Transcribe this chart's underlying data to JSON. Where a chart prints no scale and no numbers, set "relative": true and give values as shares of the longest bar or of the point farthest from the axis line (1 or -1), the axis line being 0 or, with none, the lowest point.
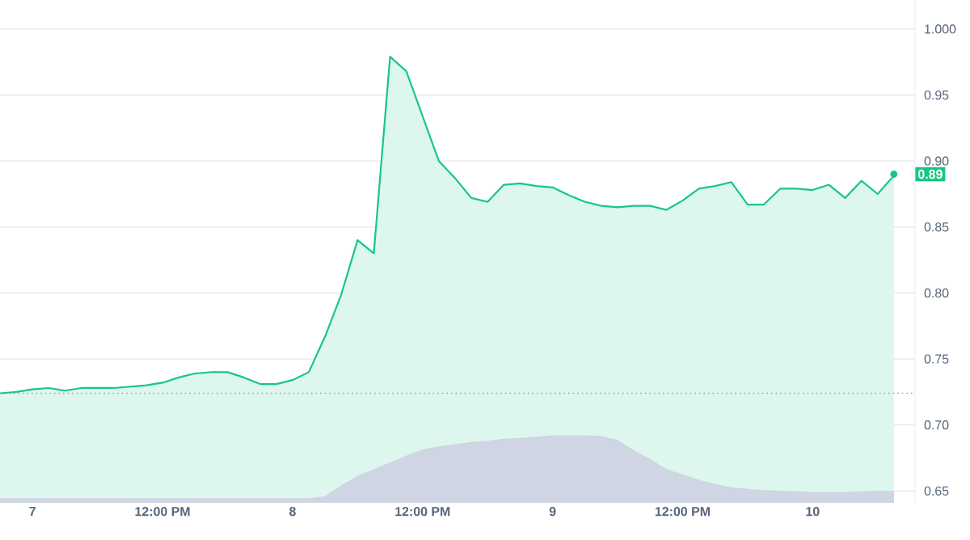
{
  "chart_data": [
    {
      "type": "area",
      "categories": [
        null,
        null,
        "7",
        null,
        null,
        null,
        null,
        null,
        null,
        null,
        "12:00 PM",
        null,
        null,
        null,
        null,
        null,
        null,
        null,
        "8",
        null,
        null,
        null,
        null,
        null,
        null,
        null,
        "12:00 PM",
        null,
        null,
        null,
        null,
        null,
        null,
        null,
        "9",
        null,
        null,
        null,
        null,
        null,
        null,
        null,
        "12:00 PM",
        null,
        null,
        null,
        null,
        null,
        null,
        null,
        "10",
        null,
        null,
        null,
        null,
        null
      ],
      "series": [
        {
          "color": "#16c784",
          "values": [
            0.724,
            0.725,
            0.727,
            0.728,
            0.726,
            0.728,
            0.728,
            0.728,
            0.729,
            0.73,
            0.732,
            0.736,
            0.739,
            0.74,
            0.74,
            0.736,
            0.731,
            0.731,
            0.734,
            0.74,
            0.767,
            0.799,
            0.84,
            0.83,
            0.979,
            0.968,
            0.934,
            0.9,
            0.887,
            0.872,
            0.869,
            0.882,
            0.883,
            0.881,
            0.88,
            0.874,
            0.869,
            0.866,
            0.865,
            0.866,
            0.866,
            0.863,
            0.87,
            0.879,
            0.881,
            0.884,
            0.867,
            0.867,
            0.879,
            0.879,
            0.878,
            0.882,
            0.872,
            0.885,
            0.875,
            0.889
          ]
        }
      ],
      "ylim": [
        0.641,
        1.022
      ],
      "yticks": [
        {
          "value": 0.65,
          "label": "0.65"
        },
        {
          "value": 0.7,
          "label": "0.70"
        },
        {
          "value": 0.75,
          "label": "0.75"
        },
        {
          "value": 0.8,
          "label": "0.80"
        },
        {
          "value": 0.85,
          "label": "0.85"
        },
        {
          "value": 0.9,
          "label": "0.90"
        },
        {
          "value": 0.95,
          "label": "0.95"
        },
        {
          "value": 1.0,
          "label": "1.000"
        }
      ],
      "grid": "y",
      "ref_lines": [
        {
          "axis": "y",
          "value": 0.724,
          "color": "#9aa0ab",
          "line_style": "dotted"
        }
      ],
      "annotations": [
        {
          "text": "0.89",
          "y": 0.89
        }
      ]
    },
    {
      "type": "area",
      "relative": true,
      "categories": [
        null,
        null,
        null,
        null,
        null,
        null,
        null,
        null,
        null,
        null,
        null,
        null,
        null,
        null,
        null,
        null,
        null,
        null,
        null,
        null,
        null,
        null,
        null,
        null,
        null,
        null,
        null,
        null,
        null,
        null,
        null,
        null,
        null,
        null,
        null,
        null,
        null,
        null,
        null,
        null,
        null,
        null,
        null,
        null,
        null,
        null,
        null,
        null,
        null,
        null,
        null,
        null,
        null,
        null,
        null,
        null
      ],
      "series": [
        {
          "color": "#cfd5e3",
          "values": [
            0.07,
            0.07,
            0.07,
            0.07,
            0.07,
            0.07,
            0.07,
            0.07,
            0.07,
            0.07,
            0.07,
            0.07,
            0.07,
            0.07,
            0.07,
            0.07,
            0.07,
            0.07,
            0.07,
            0.07,
            0.1,
            0.26,
            0.4,
            0.5,
            0.6,
            0.7,
            0.79,
            0.84,
            0.87,
            0.9,
            0.92,
            0.95,
            0.96,
            0.98,
            1,
            1,
            1,
            0.99,
            0.93,
            0.78,
            0.65,
            0.5,
            0.42,
            0.34,
            0.28,
            0.23,
            0.21,
            0.19,
            0.18,
            0.17,
            0.16,
            0.16,
            0.16,
            0.17,
            0.18,
            0.18
          ]
        }
      ]
    }
  ]
}
